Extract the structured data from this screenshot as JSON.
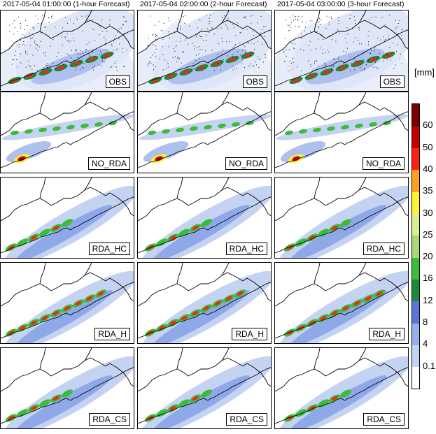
{
  "titles": [
    "2017-05-04  01:00:00 (1-hour Forecast)",
    "2017-05-04  02:00:00 (2-hour Forecast)",
    "2017-05-04  03:00:00 (3-hour Forecast)"
  ],
  "rows": [
    "OBS",
    "NO_RDA",
    "RDA_HC",
    "RDA_H",
    "RDA_CS"
  ],
  "units": "[mm]",
  "colorbar": {
    "ticks": [
      "0.1",
      "4",
      "8",
      "12",
      "16",
      "20",
      "25",
      "30",
      "35",
      "40",
      "50",
      "60"
    ],
    "colors": [
      "#ffffff",
      "#c5d3f2",
      "#97b0eb",
      "#5b76db",
      "#1a8a3a",
      "#3bbd3b",
      "#a8d87a",
      "#d8f08e",
      "#fff230",
      "#ffa020",
      "#ff2010",
      "#c40000",
      "#7a0000"
    ]
  }
}
